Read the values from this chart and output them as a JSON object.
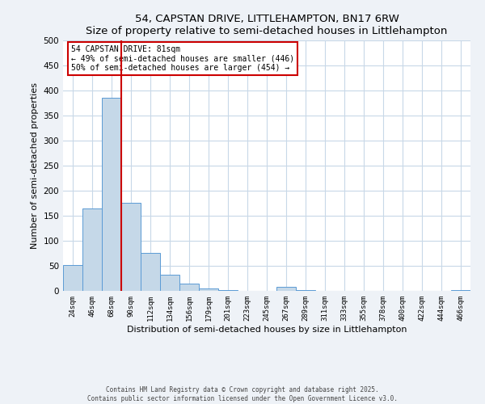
{
  "title": "54, CAPSTAN DRIVE, LITTLEHAMPTON, BN17 6RW",
  "subtitle": "Size of property relative to semi-detached houses in Littlehampton",
  "xlabel": "Distribution of semi-detached houses by size in Littlehampton",
  "ylabel": "Number of semi-detached properties",
  "bar_labels": [
    "24sqm",
    "46sqm",
    "68sqm",
    "90sqm",
    "112sqm",
    "134sqm",
    "156sqm",
    "179sqm",
    "201sqm",
    "223sqm",
    "245sqm",
    "267sqm",
    "289sqm",
    "311sqm",
    "333sqm",
    "355sqm",
    "378sqm",
    "400sqm",
    "422sqm",
    "444sqm",
    "466sqm"
  ],
  "bar_heights": [
    52,
    165,
    385,
    176,
    76,
    32,
    14,
    5,
    1,
    0,
    0,
    8,
    2,
    0,
    0,
    0,
    0,
    0,
    0,
    0,
    1
  ],
  "bar_color": "#c5d8e8",
  "bar_edge_color": "#5b9bd5",
  "vline_x": 3,
  "vline_color": "#cc0000",
  "annotation_title": "54 CAPSTAN DRIVE: 81sqm",
  "annotation_line1": "← 49% of semi-detached houses are smaller (446)",
  "annotation_line2": "50% of semi-detached houses are larger (454) →",
  "annotation_box_color": "#cc0000",
  "ylim": [
    0,
    500
  ],
  "yticks": [
    0,
    50,
    100,
    150,
    200,
    250,
    300,
    350,
    400,
    450,
    500
  ],
  "footer_line1": "Contains HM Land Registry data © Crown copyright and database right 2025.",
  "footer_line2": "Contains public sector information licensed under the Open Government Licence v3.0.",
  "bg_color": "#eef2f7",
  "plot_bg_color": "#ffffff",
  "grid_color": "#c8d8e8"
}
